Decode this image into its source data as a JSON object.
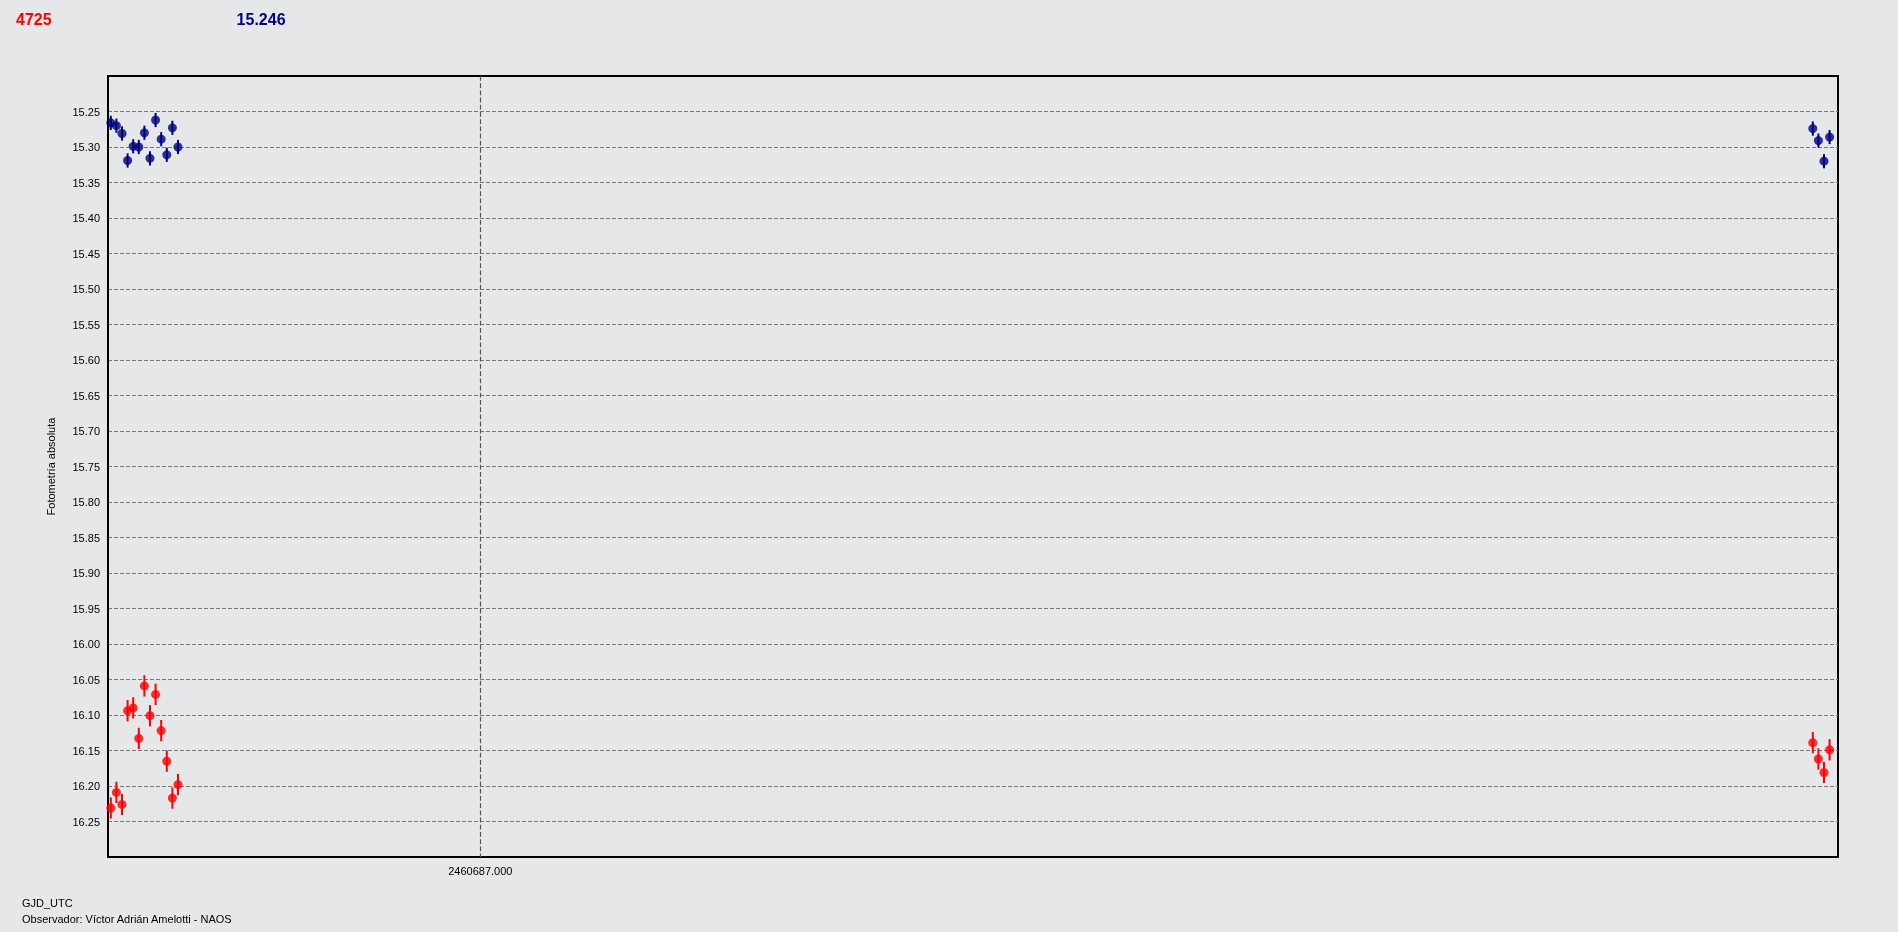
{
  "chart_data": {
    "type": "scatter",
    "xlabel": "GJD_UTC",
    "ylabel": "Fotometría absoluta",
    "annotations": [
      "Observador: Víctor Adrián Amelotti - NAOS"
    ],
    "categories": [
      null,
      null,
      null,
      null,
      null,
      null,
      null,
      null,
      null,
      null,
      null,
      null,
      null,
      null,
      null,
      null,
      null,
      null,
      null,
      null,
      null,
      null,
      null,
      null,
      null,
      null,
      null,
      null,
      null,
      null,
      null,
      null,
      null,
      null,
      null,
      null,
      null,
      null,
      null,
      null,
      null,
      null,
      null,
      null,
      null,
      null,
      null,
      null,
      null,
      null,
      null,
      null,
      null,
      null,
      null,
      null,
      null,
      null,
      null,
      null,
      null,
      null,
      null,
      null,
      null,
      null,
      "2460687.000",
      null,
      null,
      null,
      null,
      null,
      null,
      null,
      null,
      null,
      null,
      null,
      null,
      null,
      null,
      null,
      null,
      null,
      null,
      null,
      null,
      null,
      null,
      null,
      null,
      null,
      null,
      null,
      null,
      null,
      null,
      null,
      null,
      null,
      null,
      null,
      null,
      null,
      null,
      null,
      null,
      null,
      null,
      null,
      null,
      null,
      null,
      null,
      null,
      null,
      null,
      null,
      null,
      null,
      null,
      null,
      null,
      null,
      null,
      null,
      null,
      null,
      null,
      null,
      null,
      null,
      null,
      null,
      null,
      null,
      null,
      null,
      null,
      null,
      null,
      null,
      null,
      null,
      null,
      null,
      null,
      null,
      null,
      null,
      null,
      null,
      null,
      null,
      null,
      null,
      null,
      null,
      null,
      null,
      null,
      null,
      null,
      null,
      null,
      null,
      null,
      null,
      null,
      null,
      null,
      null,
      null,
      null,
      null,
      null,
      null,
      null,
      null,
      null,
      null,
      null,
      null,
      null,
      null,
      null,
      null,
      null,
      null,
      null,
      null,
      null,
      null,
      null,
      null,
      null,
      null,
      null,
      null,
      null,
      null,
      null,
      null,
      null,
      null,
      null,
      null,
      null,
      null,
      null,
      null,
      null,
      null,
      null,
      null,
      null,
      null,
      null,
      null,
      null,
      null,
      null,
      null,
      null,
      null,
      null,
      null,
      null,
      null,
      null,
      null,
      null,
      null,
      null,
      null,
      null,
      null,
      null,
      null,
      null,
      null,
      null,
      null,
      null,
      null,
      null,
      null,
      null,
      null,
      null,
      null,
      null,
      null,
      null,
      null,
      null,
      null,
      null,
      null,
      null,
      null,
      null,
      null,
      null,
      null,
      null,
      null,
      null,
      null,
      null,
      null,
      null,
      null,
      null,
      null,
      null,
      null,
      null,
      null,
      null,
      null,
      null,
      null,
      null,
      null,
      null,
      null,
      null,
      null,
      null,
      null,
      null,
      null,
      null,
      null,
      null,
      null,
      null,
      null,
      null,
      null,
      null,
      null,
      null,
      null,
      null,
      null,
      null,
      null
    ],
    "series": [
      {
        "name": "4725",
        "color": "#ff0000",
        "values": [
          16.231,
          16.209,
          16.226,
          16.094,
          16.09,
          16.133,
          16.059,
          16.101,
          16.071,
          16.122,
          16.165,
          16.217,
          16.198,
          null,
          null,
          null,
          null,
          null,
          null,
          null,
          null,
          null,
          null,
          null,
          null,
          null,
          null,
          null,
          null,
          null,
          null,
          null,
          null,
          null,
          null,
          null,
          null,
          null,
          null,
          null,
          null,
          null,
          null,
          null,
          null,
          null,
          null,
          null,
          null,
          null,
          null,
          null,
          null,
          null,
          null,
          null,
          null,
          null,
          null,
          null,
          null,
          null,
          null,
          null,
          null,
          null,
          null,
          null,
          null,
          null,
          null,
          null,
          null,
          null,
          null,
          null,
          null,
          null,
          null,
          null,
          null,
          null,
          null,
          null,
          null,
          null,
          null,
          null,
          null,
          null,
          null,
          null,
          null,
          null,
          null,
          null,
          null,
          null,
          null,
          null,
          null,
          null,
          null,
          null,
          null,
          null,
          null,
          null,
          null,
          null,
          null,
          null,
          null,
          null,
          null,
          null,
          null,
          null,
          null,
          null,
          null,
          null,
          null,
          null,
          null,
          null,
          null,
          null,
          null,
          null,
          null,
          null,
          null,
          null,
          null,
          null,
          null,
          null,
          null,
          null,
          null,
          null,
          null,
          null,
          null,
          null,
          null,
          null,
          null,
          null,
          null,
          null,
          null,
          null,
          null,
          null,
          null,
          null,
          null,
          null,
          null,
          null,
          null,
          null,
          null,
          null,
          null,
          null,
          null,
          null,
          null,
          null,
          null,
          null,
          null,
          null,
          null,
          null,
          null,
          null,
          null,
          null,
          null,
          null,
          null,
          null,
          null,
          null,
          null,
          null,
          null,
          null,
          null,
          null,
          null,
          null,
          null,
          null,
          null,
          null,
          null,
          null,
          null,
          null,
          null,
          null,
          null,
          null,
          null,
          null,
          null,
          null,
          null,
          null,
          null,
          null,
          null,
          null,
          null,
          null,
          null,
          null,
          null,
          null,
          null,
          null,
          null,
          null,
          null,
          null,
          null,
          null,
          null,
          null,
          null,
          null,
          null,
          null,
          null,
          null,
          null,
          null,
          null,
          null,
          null,
          null,
          null,
          null,
          null,
          null,
          null,
          null,
          null,
          null,
          null,
          null,
          null,
          null,
          null,
          null,
          null,
          null,
          null,
          null,
          null,
          null,
          null,
          null,
          null,
          null,
          null,
          null,
          null,
          null,
          null,
          null,
          null,
          null,
          null,
          null,
          null,
          null,
          null,
          null,
          null,
          null,
          null,
          null,
          null,
          null,
          null,
          null,
          null,
          null,
          null,
          null,
          null,
          null,
          null,
          null,
          null,
          null,
          null,
          null,
          16.139,
          16.162,
          16.181,
          16.149,
          null
        ],
        "errors": [
          0.015,
          0.015,
          0.015,
          0.015,
          0.015,
          0.015,
          0.015,
          0.015,
          0.015,
          0.015,
          0.015,
          0.015,
          0.015,
          null,
          null,
          null,
          null,
          null,
          null,
          null,
          null,
          null,
          null,
          null,
          null,
          null,
          null,
          null,
          null,
          null,
          null,
          null,
          null,
          null,
          null,
          null,
          null,
          null,
          null,
          null,
          null,
          null,
          null,
          null,
          null,
          null,
          null,
          null,
          null,
          null,
          null,
          null,
          null,
          null,
          null,
          null,
          null,
          null,
          null,
          null,
          null,
          null,
          null,
          null,
          null,
          null,
          null,
          null,
          null,
          null,
          null,
          null,
          null,
          null,
          null,
          null,
          null,
          null,
          null,
          null,
          null,
          null,
          null,
          null,
          null,
          null,
          null,
          null,
          null,
          null,
          null,
          null,
          null,
          null,
          null,
          null,
          null,
          null,
          null,
          null,
          null,
          null,
          null,
          null,
          null,
          null,
          null,
          null,
          null,
          null,
          null,
          null,
          null,
          null,
          null,
          null,
          null,
          null,
          null,
          null,
          null,
          null,
          null,
          null,
          null,
          null,
          null,
          null,
          null,
          null,
          null,
          null,
          null,
          null,
          null,
          null,
          null,
          null,
          null,
          null,
          null,
          null,
          null,
          null,
          null,
          null,
          null,
          null,
          null,
          null,
          null,
          null,
          null,
          null,
          null,
          null,
          null,
          null,
          null,
          null,
          null,
          null,
          null,
          null,
          null,
          null,
          null,
          null,
          null,
          null,
          null,
          null,
          null,
          null,
          null,
          null,
          null,
          null,
          null,
          null,
          null,
          null,
          null,
          null,
          null,
          null,
          null,
          null,
          null,
          null,
          null,
          null,
          null,
          null,
          null,
          null,
          null,
          null,
          null,
          null,
          null,
          null,
          null,
          null,
          null,
          null,
          null,
          null,
          null,
          null,
          null,
          null,
          null,
          null,
          null,
          null,
          null,
          null,
          null,
          null,
          null,
          null,
          null,
          null,
          null,
          null,
          null,
          null,
          null,
          null,
          null,
          null,
          null,
          null,
          null,
          null,
          null,
          null,
          null,
          null,
          null,
          null,
          null,
          null,
          null,
          null,
          null,
          null,
          null,
          null,
          null,
          null,
          null,
          null,
          null,
          null,
          null,
          null,
          null,
          null,
          null,
          null,
          null,
          null,
          null,
          null,
          null,
          null,
          null,
          null,
          null,
          null,
          null,
          null,
          null,
          null,
          null,
          null,
          null,
          null,
          null,
          null,
          null,
          null,
          null,
          null,
          null,
          null,
          null,
          null,
          null,
          null,
          null,
          null,
          null,
          null,
          null,
          null,
          null,
          null,
          null,
          null,
          null,
          null,
          0.015,
          0.015,
          0.015,
          0.015,
          null
        ]
      },
      {
        "name": "15.246",
        "color": "#000080",
        "values": [
          15.266,
          15.27,
          15.281,
          15.319,
          15.299,
          15.3,
          15.28,
          15.316,
          15.262,
          15.289,
          15.311,
          15.273,
          15.3,
          null,
          null,
          null,
          null,
          null,
          null,
          null,
          null,
          null,
          null,
          null,
          null,
          null,
          null,
          null,
          null,
          null,
          null,
          null,
          null,
          null,
          null,
          null,
          null,
          null,
          null,
          null,
          null,
          null,
          null,
          null,
          null,
          null,
          null,
          null,
          null,
          null,
          null,
          null,
          null,
          null,
          null,
          null,
          null,
          null,
          null,
          null,
          null,
          null,
          null,
          null,
          null,
          null,
          null,
          null,
          null,
          null,
          null,
          null,
          null,
          null,
          null,
          null,
          null,
          null,
          null,
          null,
          null,
          null,
          null,
          null,
          null,
          null,
          null,
          null,
          null,
          null,
          null,
          null,
          null,
          null,
          null,
          null,
          null,
          null,
          null,
          null,
          null,
          null,
          null,
          null,
          null,
          null,
          null,
          null,
          null,
          null,
          null,
          null,
          null,
          null,
          null,
          null,
          null,
          null,
          null,
          null,
          null,
          null,
          null,
          null,
          null,
          null,
          null,
          null,
          null,
          null,
          null,
          null,
          null,
          null,
          null,
          null,
          null,
          null,
          null,
          null,
          null,
          null,
          null,
          null,
          null,
          null,
          null,
          null,
          null,
          null,
          null,
          null,
          null,
          null,
          null,
          null,
          null,
          null,
          null,
          null,
          null,
          null,
          null,
          null,
          null,
          null,
          null,
          null,
          null,
          null,
          null,
          null,
          null,
          null,
          null,
          null,
          null,
          null,
          null,
          null,
          null,
          null,
          null,
          null,
          null,
          null,
          null,
          null,
          null,
          null,
          null,
          null,
          null,
          null,
          null,
          null,
          null,
          null,
          null,
          null,
          null,
          null,
          null,
          null,
          null,
          null,
          null,
          null,
          null,
          null,
          null,
          null,
          null,
          null,
          null,
          null,
          null,
          null,
          null,
          null,
          null,
          null,
          null,
          null,
          null,
          null,
          null,
          null,
          null,
          null,
          null,
          null,
          null,
          null,
          null,
          null,
          null,
          null,
          null,
          null,
          null,
          null,
          null,
          null,
          null,
          null,
          null,
          null,
          null,
          null,
          null,
          null,
          null,
          null,
          null,
          null,
          null,
          null,
          null,
          null,
          null,
          null,
          null,
          null,
          null,
          null,
          null,
          null,
          null,
          null,
          null,
          null,
          null,
          null,
          null,
          null,
          null,
          null,
          null,
          null,
          null,
          null,
          null,
          null,
          null,
          null,
          null,
          null,
          null,
          null,
          null,
          null,
          null,
          null,
          null,
          null,
          null,
          null,
          null,
          null,
          null,
          null,
          null,
          null,
          15.274,
          15.291,
          15.32,
          15.286,
          null
        ],
        "errors": [
          0.01,
          0.01,
          0.01,
          0.01,
          0.01,
          0.01,
          0.01,
          0.01,
          0.01,
          0.01,
          0.01,
          0.01,
          0.01,
          null,
          null,
          null,
          null,
          null,
          null,
          null,
          null,
          null,
          null,
          null,
          null,
          null,
          null,
          null,
          null,
          null,
          null,
          null,
          null,
          null,
          null,
          null,
          null,
          null,
          null,
          null,
          null,
          null,
          null,
          null,
          null,
          null,
          null,
          null,
          null,
          null,
          null,
          null,
          null,
          null,
          null,
          null,
          null,
          null,
          null,
          null,
          null,
          null,
          null,
          null,
          null,
          null,
          null,
          null,
          null,
          null,
          null,
          null,
          null,
          null,
          null,
          null,
          null,
          null,
          null,
          null,
          null,
          null,
          null,
          null,
          null,
          null,
          null,
          null,
          null,
          null,
          null,
          null,
          null,
          null,
          null,
          null,
          null,
          null,
          null,
          null,
          null,
          null,
          null,
          null,
          null,
          null,
          null,
          null,
          null,
          null,
          null,
          null,
          null,
          null,
          null,
          null,
          null,
          null,
          null,
          null,
          null,
          null,
          null,
          null,
          null,
          null,
          null,
          null,
          null,
          null,
          null,
          null,
          null,
          null,
          null,
          null,
          null,
          null,
          null,
          null,
          null,
          null,
          null,
          null,
          null,
          null,
          null,
          null,
          null,
          null,
          null,
          null,
          null,
          null,
          null,
          null,
          null,
          null,
          null,
          null,
          null,
          null,
          null,
          null,
          null,
          null,
          null,
          null,
          null,
          null,
          null,
          null,
          null,
          null,
          null,
          null,
          null,
          null,
          null,
          null,
          null,
          null,
          null,
          null,
          null,
          null,
          null,
          null,
          null,
          null,
          null,
          null,
          null,
          null,
          null,
          null,
          null,
          null,
          null,
          null,
          null,
          null,
          null,
          null,
          null,
          null,
          null,
          null,
          null,
          null,
          null,
          null,
          null,
          null,
          null,
          null,
          null,
          null,
          null,
          null,
          null,
          null,
          null,
          null,
          null,
          null,
          null,
          null,
          null,
          null,
          null,
          null,
          null,
          null,
          null,
          null,
          null,
          null,
          null,
          null,
          null,
          null,
          null,
          null,
          null,
          null,
          null,
          null,
          null,
          null,
          null,
          null,
          null,
          null,
          null,
          null,
          null,
          null,
          null,
          null,
          null,
          null,
          null,
          null,
          null,
          null,
          null,
          null,
          null,
          null,
          null,
          null,
          null,
          null,
          null,
          null,
          null,
          null,
          null,
          null,
          null,
          null,
          null,
          null,
          null,
          null,
          null,
          null,
          null,
          null,
          null,
          null,
          null,
          null,
          null,
          null,
          null,
          null,
          null,
          null,
          null,
          null,
          null,
          null,
          0.01,
          0.01,
          0.01,
          0.01,
          null
        ]
      }
    ],
    "ref_lines": [
      {
        "axis": "x",
        "value": "2460687.000",
        "line_style": "dashed"
      }
    ],
    "ylim": [
      16.3,
      15.2
    ],
    "yticks": [
      {
        "value": 15.25,
        "label": "15.25"
      },
      {
        "value": 15.3,
        "label": "15.30"
      },
      {
        "value": 15.35,
        "label": "15.35"
      },
      {
        "value": 15.4,
        "label": "15.40"
      },
      {
        "value": 15.45,
        "label": "15.45"
      },
      {
        "value": 15.5,
        "label": "15.50"
      },
      {
        "value": 15.55,
        "label": "15.55"
      },
      {
        "value": 15.6,
        "label": "15.60"
      },
      {
        "value": 15.65,
        "label": "15.65"
      },
      {
        "value": 15.7,
        "label": "15.70"
      },
      {
        "value": 15.75,
        "label": "15.75"
      },
      {
        "value": 15.8,
        "label": "15.80"
      },
      {
        "value": 15.85,
        "label": "15.85"
      },
      {
        "value": 15.9,
        "label": "15.90"
      },
      {
        "value": 15.95,
        "label": "15.95"
      },
      {
        "value": 16,
        "label": "16.00"
      },
      {
        "value": 16.05,
        "label": "16.05"
      },
      {
        "value": 16.1,
        "label": "16.10"
      },
      {
        "value": 16.15,
        "label": "16.15"
      },
      {
        "value": 16.2,
        "label": "16.20"
      },
      {
        "value": 16.25,
        "label": "16.25"
      }
    ],
    "grid": "y",
    "legend": "top left",
    "marker": "circle"
  }
}
